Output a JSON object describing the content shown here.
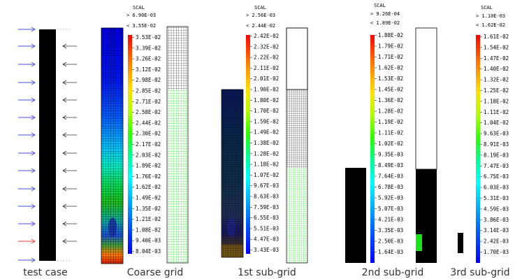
{
  "captions": [
    "test case",
    "Coarse grid",
    "1st sub-grid",
    "2nd sub-grid",
    "3rd sub-grid"
  ],
  "colorbars": [
    {
      "title": "SCAL",
      "min_line": "> 6.90E-03",
      "max_line": "< 3.55E-02",
      "ticks": [
        "3.53E-02",
        "3.39E-02",
        "3.26E-02",
        "3.12E-02",
        "2.98E-02",
        "2.85E-02",
        "2.71E-02",
        "2.58E-02",
        "2.44E-02",
        "2.30E-02",
        "2.17E-02",
        "2.03E-02",
        "1.89E-02",
        "1.76E-02",
        "1.62E-02",
        "1.49E-02",
        "1.35E-02",
        "1.21E-02",
        "1.08E-02",
        "9.40E-03",
        "8.04E-03"
      ]
    },
    {
      "title": "SCAL",
      "min_line": "> 2.56E-03",
      "max_line": "< 2.44E-02",
      "ticks": [
        "2.42E-02",
        "2.32E-02",
        "2.22E-02",
        "2.11E-02",
        "2.01E-02",
        "1.90E-02",
        "1.80E-02",
        "1.70E-02",
        "1.59E-02",
        "1.49E-02",
        "1.38E-02",
        "1.28E-02",
        "1.18E-02",
        "1.07E-02",
        "9.67E-03",
        "8.63E-03",
        "7.59E-03",
        "6.55E-03",
        "5.51E-03",
        "4.47E-03",
        "3.43E-03"
      ]
    },
    {
      "title": "SCAL",
      "min_line": "> 9.26E-04",
      "max_line": "< 1.89E-02",
      "ticks": [
        "1.88E-02",
        "1.79E-02",
        "1.71E-02",
        "1.62E-02",
        "1.53E-02",
        "1.45E-02",
        "1.36E-02",
        "1.28E-02",
        "1.19E-02",
        "1.11E-02",
        "1.02E-02",
        "9.35E-03",
        "8.49E-03",
        "7.64E-03",
        "6.78E-03",
        "5.92E-03",
        "5.07E-03",
        "4.21E-03",
        "3.35E-03",
        "2.50E-03",
        "1.64E-03"
      ]
    },
    {
      "title": "SCAL",
      "min_line": "> 1.10E-03",
      "max_line": "< 1.62E-02",
      "ticks": [
        "1.61E-02",
        "1.54E-02",
        "1.47E-02",
        "1.40E-02",
        "1.32E-02",
        "1.25E-02",
        "1.18E-02",
        "1.11E-02",
        "1.04E-02",
        "9.63E-03",
        "8.91E-03",
        "8.19E-03",
        "7.47E-03",
        "6.75E-03",
        "6.03E-03",
        "5.31E-03",
        "4.59E-03",
        "3.86E-03",
        "3.14E-03",
        "2.42E-03",
        "1.70E-03"
      ]
    }
  ],
  "colors": {
    "inflow_arrow": "#4a4adf",
    "inflow_arrow_bottom": "#e23b3b",
    "outflow_arrow": "#333333",
    "mesh_line": "#000000",
    "refined_mesh": "#19e619",
    "colormap": [
      "#0000ff",
      "#0040ff",
      "#0090ff",
      "#00d0ff",
      "#00ffd0",
      "#00ff60",
      "#40ff00",
      "#b0ff00",
      "#ffe000",
      "#ff8000",
      "#ff2000"
    ]
  }
}
